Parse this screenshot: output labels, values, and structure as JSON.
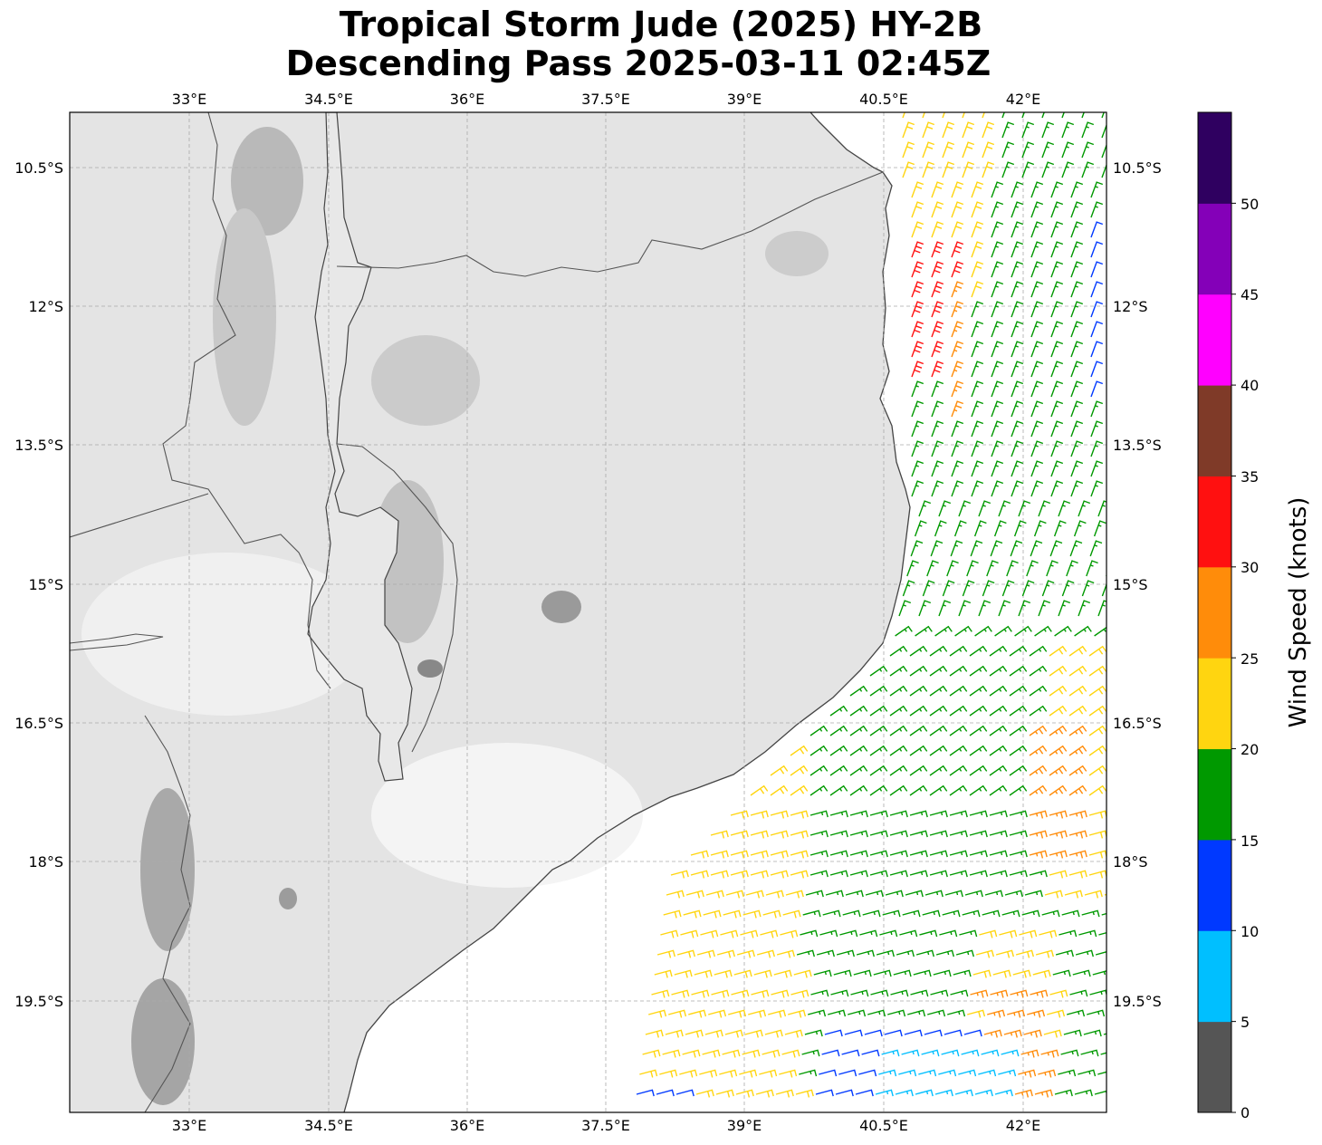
{
  "title": {
    "line1": "Tropical Storm Jude (2025) HY-2B",
    "line2": "Descending Pass 2025-03-11 02:45Z"
  },
  "map": {
    "lon_range": [
      31.7,
      42.9
    ],
    "lat_range": [
      -9.9,
      -20.7
    ],
    "lon_ticks": [
      "33°E",
      "34.5°E",
      "36°E",
      "37.5°E",
      "39°E",
      "40.5°E",
      "42°E"
    ],
    "lon_tick_values": [
      33,
      34.5,
      36,
      37.5,
      39,
      40.5,
      42
    ],
    "lat_ticks": [
      "10.5°S",
      "12°S",
      "13.5°S",
      "15°S",
      "16.5°S",
      "18°S",
      "19.5°S"
    ],
    "lat_tick_values": [
      -10.5,
      -12,
      -13.5,
      -15,
      -16.5,
      -18,
      -19.5
    ],
    "gridlines": true,
    "basemap": "grayscale terrain",
    "coastline_color": "#444444"
  },
  "colorbar": {
    "label": "Wind Speed (knots)",
    "ticks": [
      "0",
      "5",
      "10",
      "15",
      "20",
      "25",
      "30",
      "35",
      "40",
      "45",
      "50"
    ],
    "bins": [
      {
        "min": 0,
        "max": 5,
        "color": "#555555"
      },
      {
        "min": 5,
        "max": 10,
        "color": "#00bfff"
      },
      {
        "min": 10,
        "max": 15,
        "color": "#0039ff"
      },
      {
        "min": 15,
        "max": 20,
        "color": "#009900"
      },
      {
        "min": 20,
        "max": 25,
        "color": "#ffd510"
      },
      {
        "min": 25,
        "max": 30,
        "color": "#ff8c0a"
      },
      {
        "min": 30,
        "max": 35,
        "color": "#ff1010"
      },
      {
        "min": 35,
        "max": 40,
        "color": "#7f3a28"
      },
      {
        "min": 40,
        "max": 45,
        "color": "#ff00ff"
      },
      {
        "min": 45,
        "max": 50,
        "color": "#8400b8"
      },
      {
        "min": 50,
        "max": 55,
        "color": "#2f0060"
      }
    ]
  },
  "chart_data": {
    "type": "scatter",
    "description_units": "wind barbs, speed in knots",
    "wind_swath": {
      "lon_range": [
        38.0,
        42.9
      ],
      "lat_range": [
        -10.0,
        -20.6
      ],
      "speed_range_knots": [
        5,
        35
      ]
    }
  }
}
